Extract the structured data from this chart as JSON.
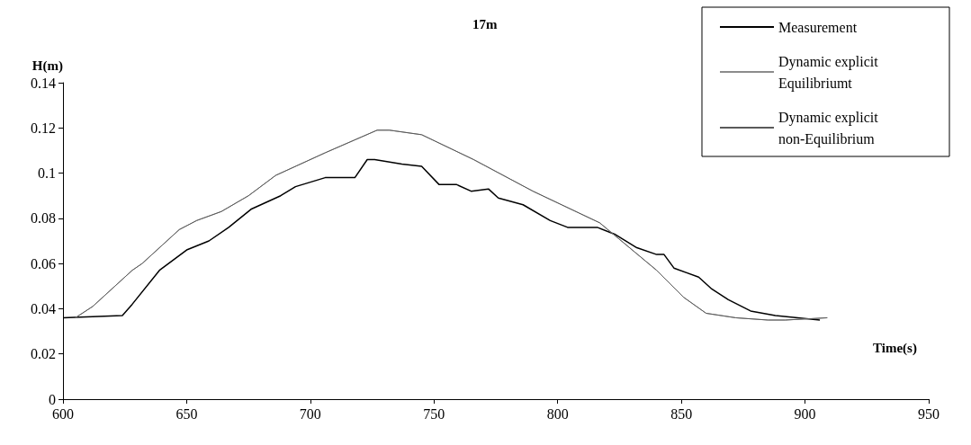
{
  "chart_data": {
    "type": "line",
    "title": "17m",
    "xlabel": "Time(s)",
    "ylabel": "H(m)",
    "xlim": [
      600,
      950
    ],
    "xticks": [
      600,
      650,
      700,
      750,
      800,
      850,
      900,
      950
    ],
    "ylim": [
      0,
      0.14
    ],
    "yticks": [
      0,
      0.02,
      0.04,
      0.06,
      0.08,
      0.1,
      0.12,
      0.14
    ],
    "grid": false,
    "legend": "top right",
    "marker": "none",
    "line_style": "solid",
    "series": [
      {
        "name": "Measurement",
        "color": "#000000",
        "x": [
          600,
          624,
          628,
          639,
          650,
          659,
          667,
          676,
          688,
          694,
          706,
          718,
          723,
          726,
          737,
          745,
          752,
          759,
          765,
          772,
          776,
          786,
          797,
          804,
          816,
          823,
          832,
          840,
          843,
          847,
          857,
          862,
          869,
          878,
          888,
          897,
          906
        ],
        "values": [
          0.036,
          0.037,
          0.042,
          0.057,
          0.066,
          0.07,
          0.076,
          0.084,
          0.09,
          0.094,
          0.098,
          0.098,
          0.106,
          0.106,
          0.104,
          0.103,
          0.095,
          0.095,
          0.092,
          0.093,
          0.089,
          0.086,
          0.079,
          0.076,
          0.076,
          0.073,
          0.067,
          0.064,
          0.064,
          0.058,
          0.054,
          0.049,
          0.044,
          0.039,
          0.037,
          0.036,
          0.035
        ]
      },
      {
        "name": "Dynamic explicit Equilibriumt",
        "color": "#8c8c8c",
        "x": [
          605,
          612,
          628,
          632,
          647,
          654,
          664,
          675,
          686,
          706,
          727,
          732,
          745,
          766,
          790,
          817,
          840,
          851,
          860,
          872,
          885,
          892,
          909
        ],
        "values": [
          0.036,
          0.041,
          0.057,
          0.06,
          0.075,
          0.079,
          0.083,
          0.09,
          0.099,
          0.109,
          0.119,
          0.119,
          0.117,
          0.106,
          0.092,
          0.078,
          0.057,
          0.045,
          0.038,
          0.036,
          0.035,
          0.035,
          0.036
        ]
      },
      {
        "name": "Dynamic explicit non-Equilibrium",
        "color": "#5a5a5a",
        "x": [
          605,
          612,
          628,
          632,
          647,
          654,
          664,
          675,
          686,
          706,
          727,
          732,
          745,
          766,
          790,
          817,
          840,
          851,
          860,
          872,
          885,
          892,
          909
        ],
        "values": [
          0.036,
          0.041,
          0.057,
          0.06,
          0.075,
          0.079,
          0.083,
          0.09,
          0.099,
          0.109,
          0.119,
          0.119,
          0.117,
          0.106,
          0.092,
          0.078,
          0.057,
          0.045,
          0.038,
          0.036,
          0.035,
          0.035,
          0.036
        ]
      }
    ]
  }
}
